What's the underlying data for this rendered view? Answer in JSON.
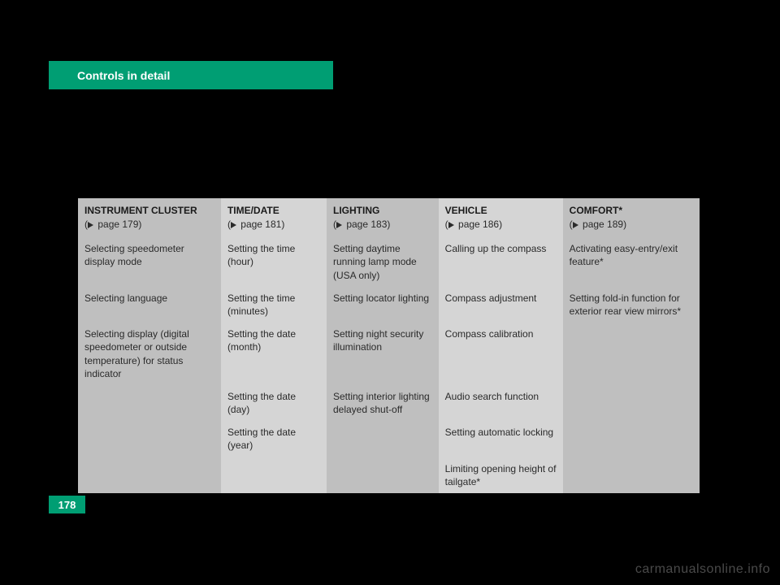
{
  "header": {
    "title": "Controls in detail"
  },
  "page_number": "178",
  "watermark": "carmanualsonline.info",
  "table": {
    "columns": [
      {
        "title": "INSTRUMENT CLUSTER",
        "page_ref": "page 179"
      },
      {
        "title": "TIME/DATE",
        "page_ref": "page 181"
      },
      {
        "title": "LIGHTING",
        "page_ref": "page 183"
      },
      {
        "title": "VEHICLE",
        "page_ref": "page 186"
      },
      {
        "title": "COMFORT*",
        "page_ref": "page 189"
      }
    ],
    "rows": [
      [
        "Selecting speedometer display mode",
        "Setting the time (hour)",
        "Setting daytime running lamp mode (USA only)",
        "Calling up the compass",
        "Activating easy-entry/exit feature*"
      ],
      [
        "Selecting language",
        "Setting the time (minutes)",
        "Setting locator lighting",
        "Compass adjustment",
        "Setting fold-in function for exterior rear view mirrors*"
      ],
      [
        "Selecting display (digital speedometer or outside temperature) for status indicator",
        "Setting the date (month)",
        "Setting night security illumination",
        "Compass calibration",
        ""
      ],
      [
        "",
        "Setting the date (day)",
        "Setting interior lighting delayed shut-off",
        "Audio search function",
        ""
      ],
      [
        "",
        "Setting the date (year)",
        "",
        "Setting automatic locking",
        ""
      ],
      [
        "",
        "",
        "",
        "Limiting opening height of tailgate*",
        ""
      ]
    ]
  }
}
